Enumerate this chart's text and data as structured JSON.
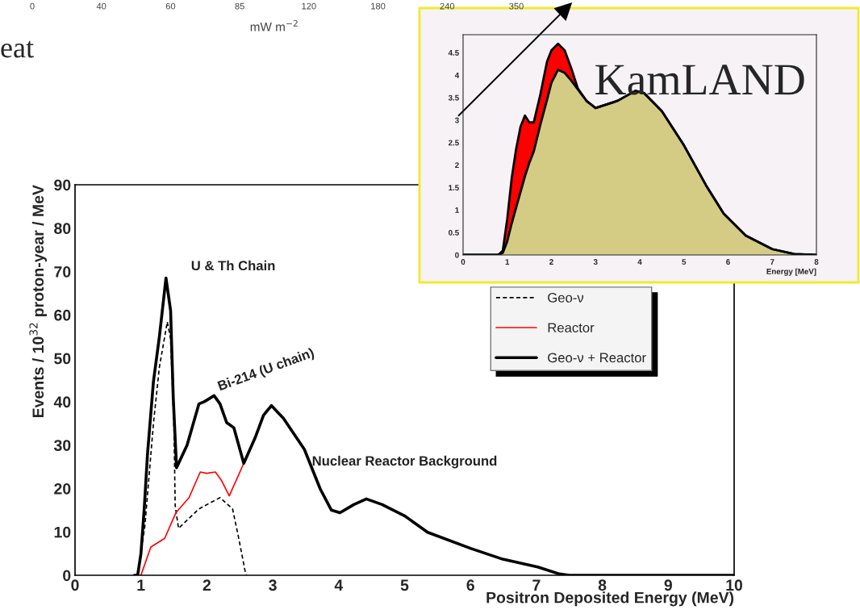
{
  "chart_data": [
    {
      "type": "other",
      "categories": [
        "0",
        "40",
        "60",
        "85",
        "120",
        "180",
        "240",
        "350"
      ],
      "xlabel": "mW m$^{−2}$",
      "annotations": [
        "eat"
      ]
    },
    {
      "type": "line",
      "xlabel": "Positron Deposited Energy (MeV)",
      "ylabel": "Events / 10$^{32}$ proton-year / MeV",
      "xlim": [
        0,
        10
      ],
      "ylim": [
        0,
        90
      ],
      "xticks": [
        0,
        1,
        2,
        3,
        4,
        5,
        6,
        7,
        8,
        9,
        10
      ],
      "yticks": [
        0,
        10,
        20,
        30,
        40,
        50,
        60,
        70,
        80,
        90
      ],
      "legend": "top right",
      "grid": false,
      "series": [
        {
          "name": "Geo-ν",
          "color": "#000000",
          "line_style": "dashed",
          "x": [
            0.95,
            1.06,
            1.19,
            1.28,
            1.4,
            1.45,
            1.5,
            1.52,
            1.57,
            1.88,
            2.2,
            2.39,
            2.48,
            2.58,
            2.6
          ],
          "values": [
            0,
            11.4,
            35,
            48,
            58.4,
            54.5,
            35,
            16,
            10.8,
            15.3,
            17.9,
            15.3,
            8.8,
            1,
            0
          ]
        },
        {
          "name": "Reactor",
          "color": "#ff0000",
          "line_style": "solid",
          "x": [
            1.0,
            1.15,
            1.36,
            1.53,
            1.73,
            1.9,
            2.0,
            2.13,
            2.22,
            2.34,
            2.56
          ],
          "values": [
            0,
            6.5,
            8.5,
            14.4,
            17.9,
            23.8,
            23.5,
            23.8,
            21.9,
            18.3,
            25.8
          ]
        },
        {
          "name": "Geo-ν + Reactor",
          "color": "#000000",
          "line_style": "solid",
          "x": [
            0.9,
            0.95,
            1.0,
            1.05,
            1.1,
            1.19,
            1.28,
            1.38,
            1.45,
            1.49,
            1.54,
            1.7,
            1.88,
            1.96,
            2.11,
            2.2,
            2.3,
            2.41,
            2.56,
            2.73,
            2.86,
            2.98,
            3.16,
            3.48,
            3.72,
            3.89,
            4.02,
            4.23,
            4.42,
            4.66,
            5.0,
            5.35,
            6.0,
            6.49,
            7.02,
            7.35,
            7.5,
            10
          ],
          "values": [
            0,
            0,
            5,
            15.3,
            28,
            44.7,
            55,
            68.5,
            61,
            41,
            24.8,
            30,
            39.5,
            40,
            41.4,
            39.5,
            35.2,
            34,
            25.8,
            31.6,
            36.9,
            39.1,
            36.2,
            29,
            19.9,
            15,
            14.4,
            16.3,
            17.6,
            16.3,
            13.7,
            9.9,
            6.2,
            3.7,
            1.9,
            0.3,
            0,
            0
          ]
        }
      ],
      "annotations": [
        "U & Th Chain",
        "Bi-214 (U chain)",
        "Nuclear Reactor Background"
      ]
    },
    {
      "type": "area",
      "stacked": true,
      "xlabel": "Energy [MeV]",
      "xlim": [
        0,
        8
      ],
      "ylim": [
        0,
        4.9
      ],
      "xticks": [
        0,
        1,
        2,
        3,
        4,
        5,
        6,
        7,
        8
      ],
      "yticks": [
        0,
        0.5,
        1,
        1.5,
        2,
        2.5,
        3,
        3.5,
        4,
        4.5
      ],
      "grid": false,
      "x": [
        0,
        0.8,
        0.9,
        1.0,
        1.1,
        1.2,
        1.3,
        1.4,
        1.5,
        1.6,
        1.75,
        1.9,
        2.0,
        2.15,
        2.3,
        2.45,
        2.6,
        2.8,
        3.0,
        3.5,
        3.9,
        4.1,
        4.5,
        5.0,
        5.5,
        5.9,
        6.4,
        7.0,
        7.5,
        8.0
      ],
      "series": [
        {
          "color": "#d4cc85",
          "values": [
            0,
            0,
            0.05,
            0.3,
            0.7,
            1.05,
            1.4,
            1.75,
            2.05,
            2.3,
            2.9,
            3.45,
            3.83,
            4.12,
            4.05,
            3.88,
            3.68,
            3.42,
            3.27,
            3.43,
            3.65,
            3.6,
            3.2,
            2.44,
            1.55,
            0.92,
            0.43,
            0.13,
            0.02,
            0
          ]
        },
        {
          "color": "#ff0000",
          "values": [
            0,
            0,
            0.05,
            0.5,
            1.0,
            1.3,
            1.45,
            1.35,
            0.9,
            0.65,
            0.67,
            0.85,
            0.72,
            0.58,
            0.5,
            0.27,
            0.02,
            0,
            0,
            0,
            0,
            0,
            0,
            0,
            0,
            0,
            0,
            0,
            0,
            0
          ]
        }
      ],
      "annotations": [
        "KamLAND"
      ]
    }
  ]
}
